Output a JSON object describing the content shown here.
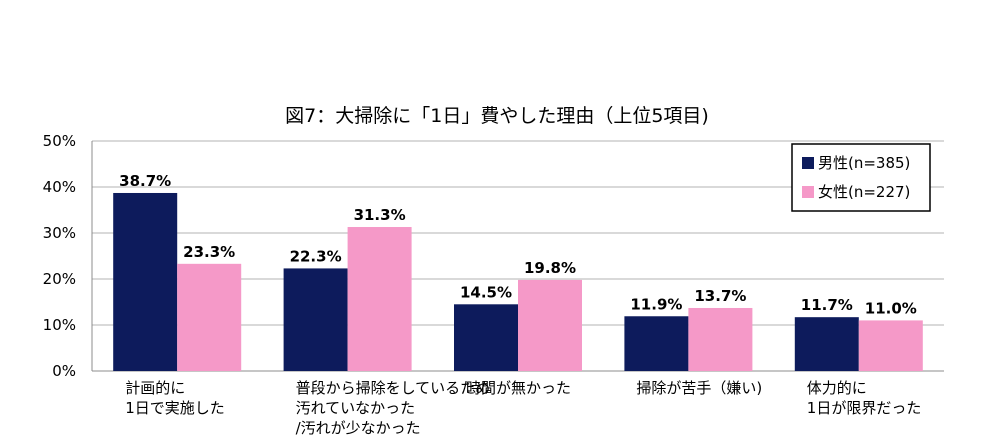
{
  "chart_data": {
    "type": "bar",
    "title": "図7：大掃除に「1日」費やした理由（上位5項目)",
    "categories": [
      [
        "計画的に",
        "1日で実施した"
      ],
      [
        "普段から掃除をしているため",
        "汚れていなかった",
        "/汚れが少なかった"
      ],
      [
        "時間が無かった"
      ],
      [
        "掃除が苦手（嫌い)"
      ],
      [
        "体力的に",
        "1日が限界だった"
      ]
    ],
    "series": [
      {
        "name": "男性(n=385)",
        "values": [
          38.7,
          22.3,
          14.5,
          11.9,
          11.7
        ],
        "labels": [
          "38.7%",
          "22.3%",
          "14.5%",
          "11.9%",
          "11.7%"
        ],
        "color": "#0d1b5c"
      },
      {
        "name": "女性(n=227)",
        "values": [
          23.3,
          31.3,
          19.8,
          13.7,
          11.0
        ],
        "labels": [
          "23.3%",
          "31.3%",
          "19.8%",
          "13.7%",
          "11.0%"
        ],
        "color": "#f599c8"
      }
    ],
    "ylim": [
      0,
      50
    ],
    "yticks": [
      0,
      10,
      20,
      30,
      40,
      50
    ],
    "ytick_labels": [
      "0%",
      "10%",
      "20%",
      "30%",
      "40%",
      "50%"
    ],
    "xlabel": "",
    "ylabel": "",
    "grid": true,
    "legend_position": "top-right"
  }
}
